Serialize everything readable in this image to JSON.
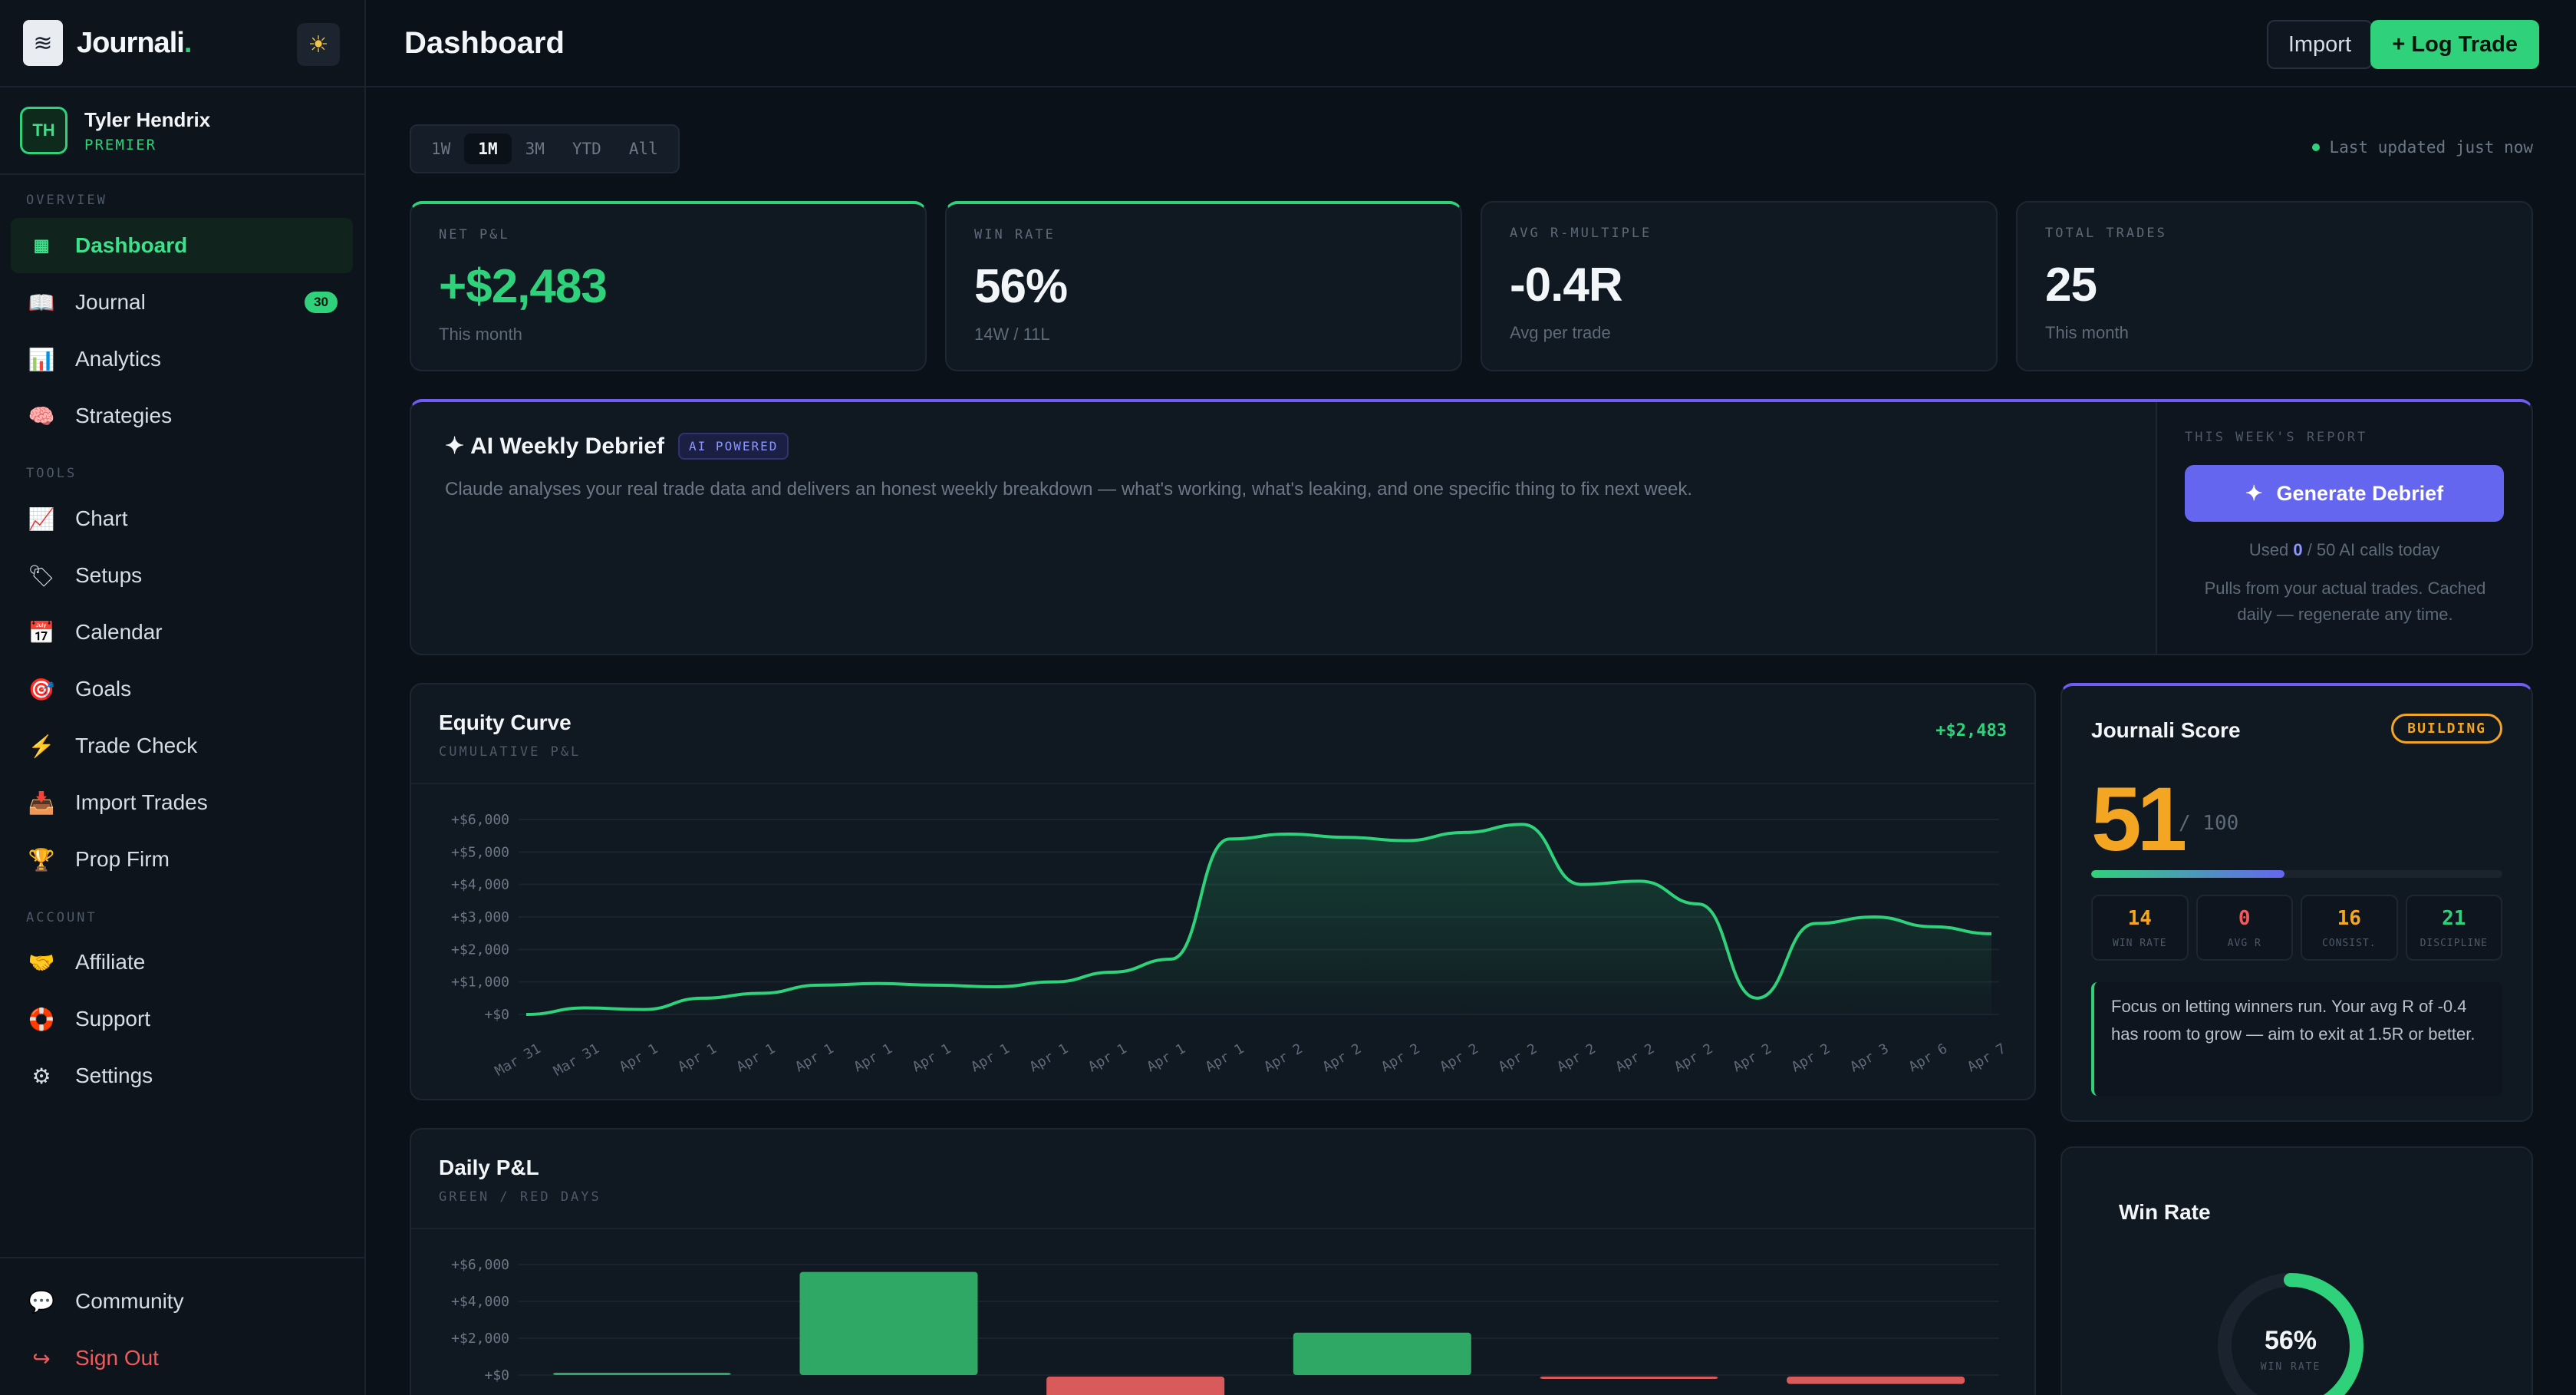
{
  "brand": {
    "name": "Journali",
    "dot": "."
  },
  "user": {
    "initials": "TH",
    "name": "Tyler Hendrix",
    "tier": "PREMIER"
  },
  "sidebar": {
    "overview_label": "OVERVIEW",
    "tools_label": "TOOLS",
    "account_label": "ACCOUNT",
    "overview": [
      {
        "label": "Dashboard",
        "icon": "grid-icon"
      },
      {
        "label": "Journal",
        "icon": "book-icon",
        "badge": "30"
      },
      {
        "label": "Analytics",
        "icon": "bar-chart-icon"
      },
      {
        "label": "Strategies",
        "icon": "brain-icon"
      }
    ],
    "tools": [
      {
        "label": "Chart",
        "icon": "line-chart-icon"
      },
      {
        "label": "Setups",
        "icon": "tag-icon"
      },
      {
        "label": "Calendar",
        "icon": "calendar-icon"
      },
      {
        "label": "Goals",
        "icon": "target-icon"
      },
      {
        "label": "Trade Check",
        "icon": "lightning-icon"
      },
      {
        "label": "Import Trades",
        "icon": "inbox-icon"
      },
      {
        "label": "Prop Firm",
        "icon": "trophy-icon"
      }
    ],
    "account": [
      {
        "label": "Affiliate",
        "icon": "handshake-icon"
      },
      {
        "label": "Support",
        "icon": "lifebuoy-icon"
      },
      {
        "label": "Settings",
        "icon": "gear-icon"
      }
    ],
    "bottom": [
      {
        "label": "Community",
        "icon": "chat-icon"
      },
      {
        "label": "Sign Out",
        "icon": "signout-icon"
      }
    ]
  },
  "header": {
    "title": "Dashboard",
    "import_label": "Import",
    "log_label": "+ Log Trade"
  },
  "range": {
    "options": [
      "1W",
      "1M",
      "3M",
      "YTD",
      "All"
    ],
    "selected": "1M"
  },
  "updated": "Last updated just now",
  "stats": [
    {
      "label": "NET P&L",
      "value": "+$2,483",
      "sub": "This month"
    },
    {
      "label": "WIN RATE",
      "value": "56%",
      "sub": "14W / 11L"
    },
    {
      "label": "AVG R-MULTIPLE",
      "value": "-0.4R",
      "sub": "Avg per trade"
    },
    {
      "label": "TOTAL TRADES",
      "value": "25",
      "sub": "This month"
    }
  ],
  "debrief": {
    "title": "AI Weekly Debrief",
    "badge": "AI POWERED",
    "text": "Claude analyses your real trade data and delivers an honest weekly breakdown — what's working, what's leaking, and one specific thing to fix next week.",
    "week_label": "THIS WEEK'S REPORT",
    "button": "Generate Debrief",
    "used_prefix": "Used ",
    "used_count": "0",
    "used_suffix": " / 50 AI calls today",
    "note": "Pulls from your actual trades. Cached daily — regenerate any time."
  },
  "equity": {
    "title": "Equity Curve",
    "subtitle": "CUMULATIVE P&L",
    "total": "+$2,483"
  },
  "daily": {
    "title": "Daily P&L",
    "subtitle": "GREEN / RED DAYS"
  },
  "score": {
    "title": "Journali Score",
    "status": "BUILDING",
    "value": "51",
    "max": "/ 100",
    "fraction": 0.51,
    "subscores": [
      {
        "value": "14",
        "label": "WIN RATE",
        "color": "#f4a623"
      },
      {
        "value": "0",
        "label": "AVG R",
        "color": "#ef5b5b"
      },
      {
        "value": "16",
        "label": "CONSIST.",
        "color": "#f4a623"
      },
      {
        "value": "21",
        "label": "DISCIPLINE",
        "color": "#2fd27a"
      }
    ],
    "tip": "Focus on letting winners run. Your avg R of -0.4 has room to grow — aim to exit at 1.5R or better."
  },
  "winrate": {
    "title": "Win Rate",
    "value": "56%",
    "label": "WIN RATE",
    "fraction": 0.56
  },
  "colors": {
    "accent": "#2fd27a",
    "purple": "#6566f0",
    "amber": "#f4a623",
    "red": "#ef5b5b"
  },
  "chart_data": [
    {
      "type": "area",
      "ylim": [
        0,
        6000
      ],
      "yticks": [
        "+$6,000",
        "+$5,000",
        "+$4,000",
        "+$3,000",
        "+$2,000",
        "+$1,000",
        "+$0"
      ],
      "categories": [
        "Mar 31",
        "Mar 31",
        "Apr 1",
        "Apr 1",
        "Apr 1",
        "Apr 1",
        "Apr 1",
        "Apr 1",
        "Apr 1",
        "Apr 1",
        "Apr 1",
        "Apr 1",
        "Apr 1",
        "Apr 2",
        "Apr 2",
        "Apr 2",
        "Apr 2",
        "Apr 2",
        "Apr 2",
        "Apr 2",
        "Apr 2",
        "Apr 2",
        "Apr 2",
        "Apr 3",
        "Apr 6",
        "Apr 7"
      ],
      "values": [
        0,
        200,
        150,
        500,
        650,
        900,
        950,
        900,
        850,
        1000,
        1300,
        1700,
        5400,
        5550,
        5450,
        5350,
        5600,
        5850,
        4000,
        4100,
        3400,
        500,
        2800,
        3000,
        2700,
        2483
      ]
    },
    {
      "type": "bar",
      "ylim": [
        -1000,
        6000
      ],
      "yticks": [
        "+$6,000",
        "+$4,000",
        "+$2,000",
        "+$0"
      ],
      "values": [
        100,
        5600,
        -1200,
        2300,
        -20,
        -400
      ]
    }
  ]
}
